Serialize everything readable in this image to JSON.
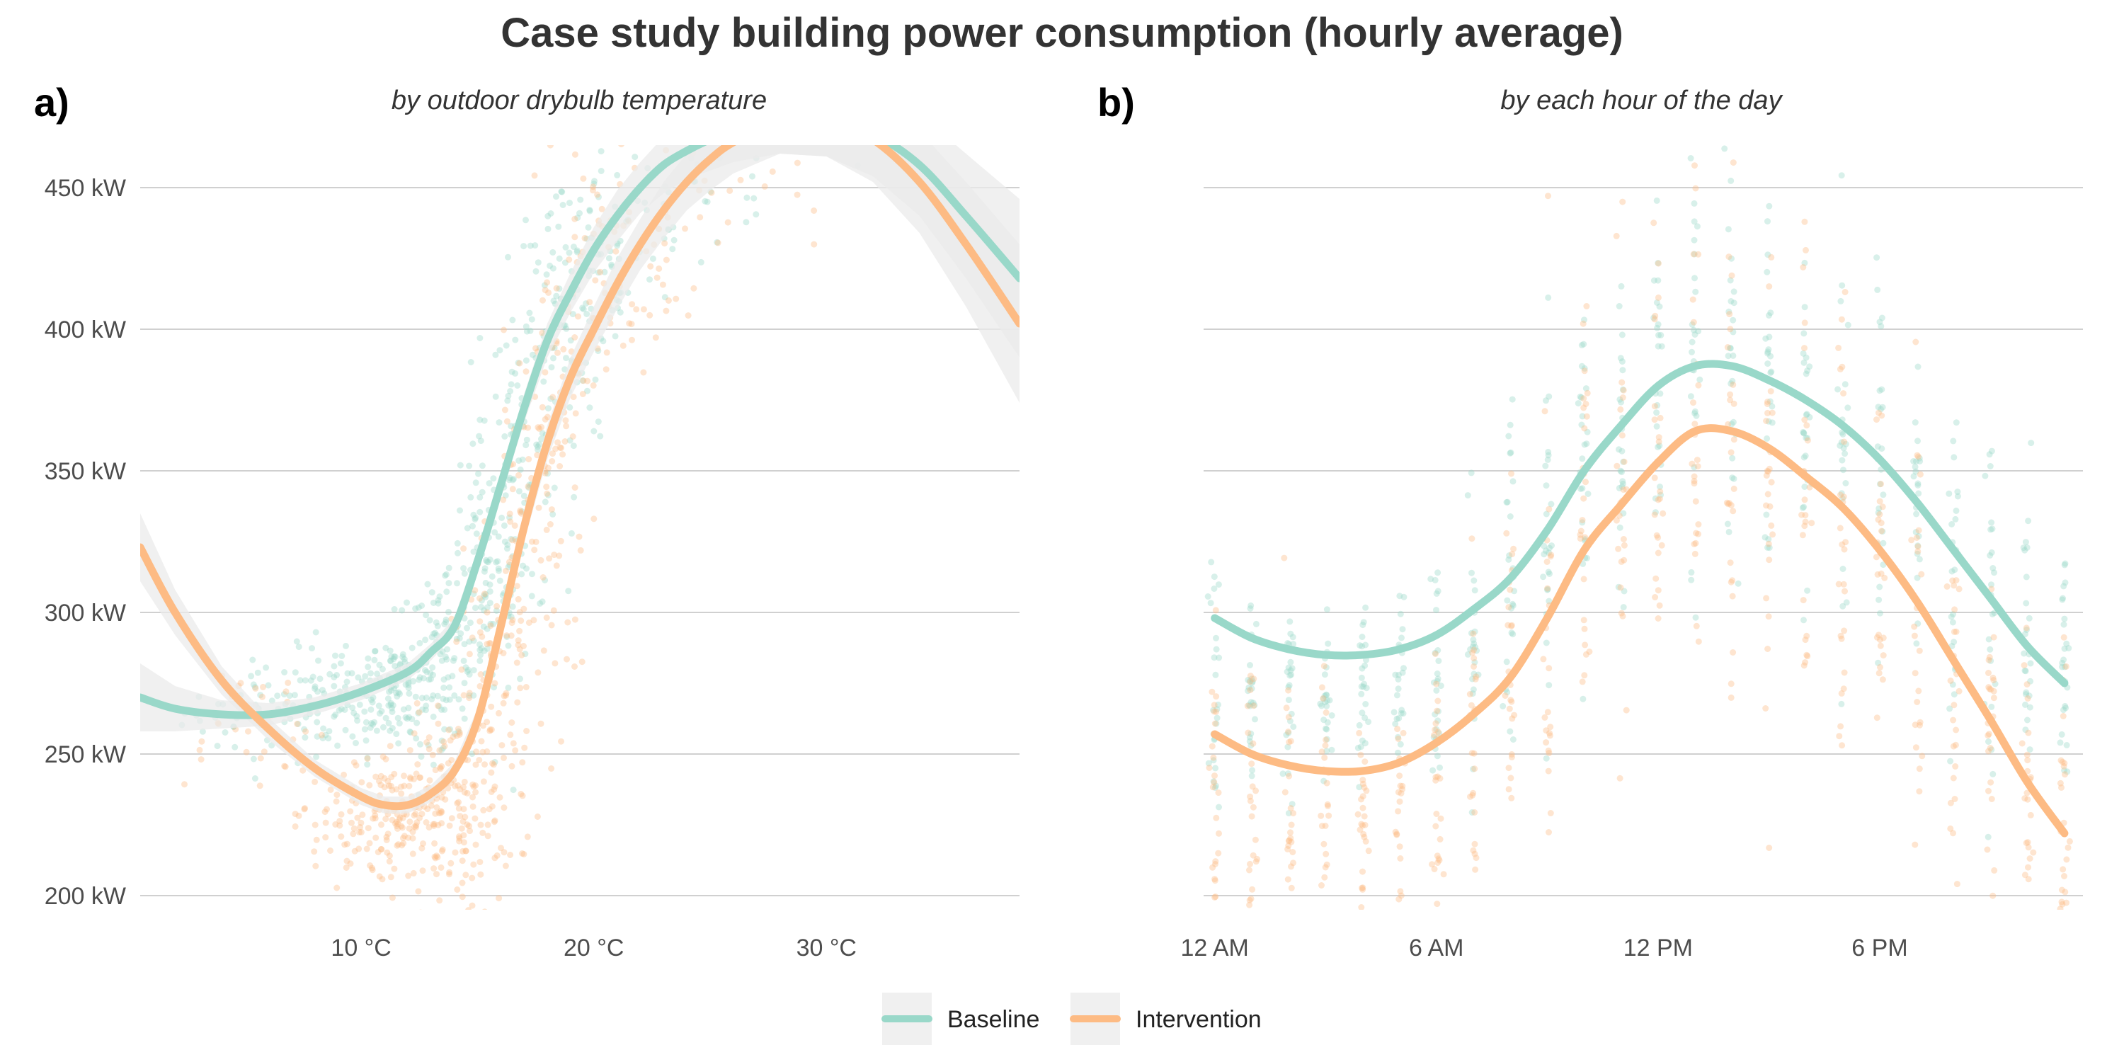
{
  "title": "Case study building power consumption (hourly average)",
  "colors": {
    "baseline": "#99d8c9",
    "intervention": "#fdbb84",
    "band": "#ebebeb",
    "grid": "#d0d0d0"
  },
  "legend": [
    {
      "key": "baseline",
      "label": "Baseline"
    },
    {
      "key": "intervention",
      "label": "Intervention"
    }
  ],
  "chart_data": [
    {
      "panel_label": "a)",
      "subtitle": "by outdoor drybulb temperature",
      "type": "scatter",
      "x_unit": "°C",
      "xlim": [
        0.5,
        38.3
      ],
      "ylim": [
        195,
        465
      ],
      "x_ticks": [
        {
          "value": 10,
          "label": "10 °C"
        },
        {
          "value": 20,
          "label": "20 °C"
        },
        {
          "value": 30,
          "label": "30 °C"
        }
      ],
      "y_ticks": [
        {
          "value": 200,
          "label": "200 kW"
        },
        {
          "value": 250,
          "label": "250 kW"
        },
        {
          "value": 300,
          "label": "300 kW"
        },
        {
          "value": 350,
          "label": "350 kW"
        },
        {
          "value": 400,
          "label": "400 kW"
        },
        {
          "value": 450,
          "label": "450 kW"
        }
      ],
      "series": [
        {
          "name": "Baseline",
          "key": "baseline",
          "trend": {
            "x": [
              0.5,
              2,
              4,
              6,
              8,
              10,
              12,
              13,
              14,
              15,
              16,
              17,
              18,
              19,
              20,
              21,
              22,
              23,
              24,
              25,
              26,
              28,
              30,
              32,
              34,
              36,
              38.3
            ],
            "y": [
              270,
              266,
              264,
              264,
              267,
              272,
              279,
              286,
              295,
              318,
              345,
              372,
              396,
              413,
              428,
              440,
              450,
              458,
              463,
              467,
              470,
              474,
              474,
              469,
              458,
              440,
              418
            ],
            "ci": [
              12,
              8,
              5,
              4,
              3,
              3,
              3,
              3,
              3,
              4,
              4,
              5,
              6,
              7,
              8,
              9,
              9,
              10,
              10,
              11,
              11,
              12,
              13,
              15,
              18,
              22,
              28
            ]
          },
          "scatter": [
            {
              "x": 6,
              "y": 265,
              "sx": 1.8,
              "sy": 9,
              "n": 50
            },
            {
              "x": 9,
              "y": 268,
              "sx": 1.5,
              "sy": 10,
              "n": 80
            },
            {
              "x": 11.5,
              "y": 274,
              "sx": 1.2,
              "sy": 12,
              "n": 100
            },
            {
              "x": 13.5,
              "y": 283,
              "sx": 1.0,
              "sy": 14,
              "n": 110
            },
            {
              "x": 15.5,
              "y": 315,
              "sx": 0.9,
              "sy": 25,
              "n": 110
            },
            {
              "x": 17,
              "y": 358,
              "sx": 0.8,
              "sy": 30,
              "n": 90
            },
            {
              "x": 18.5,
              "y": 395,
              "sx": 0.9,
              "sy": 30,
              "n": 80
            },
            {
              "x": 20.5,
              "y": 425,
              "sx": 1.2,
              "sy": 22,
              "n": 60
            },
            {
              "x": 23,
              "y": 445,
              "sx": 1.5,
              "sy": 15,
              "n": 30
            },
            {
              "x": 27,
              "y": 450,
              "sx": 2.0,
              "sy": 10,
              "n": 10
            }
          ]
        },
        {
          "name": "Intervention",
          "key": "intervention",
          "trend": {
            "x": [
              0.5,
              2,
              4,
              6,
              8,
              10,
              11,
              12,
              13,
              14,
              15,
              16,
              17,
              18,
              19,
              20,
              21,
              22,
              23,
              24,
              25,
              26,
              28,
              30,
              32,
              34,
              36,
              38.3
            ],
            "y": [
              323,
              300,
              276,
              259,
              245,
              235,
              232,
              232,
              236,
              244,
              262,
              295,
              330,
              360,
              383,
              400,
              416,
              430,
              442,
              452,
              460,
              466,
              474,
              474,
              467,
              452,
              430,
              402
            ],
            "ci": [
              12,
              8,
              5,
              4,
              3,
              3,
              3,
              3,
              3,
              3,
              4,
              5,
              5,
              6,
              7,
              8,
              9,
              9,
              10,
              10,
              11,
              11,
              12,
              13,
              15,
              18,
              22,
              28
            ]
          },
          "scatter": [
            {
              "x": 5,
              "y": 262,
              "sx": 1.8,
              "sy": 12,
              "n": 30
            },
            {
              "x": 9.5,
              "y": 225,
              "sx": 1.2,
              "sy": 10,
              "n": 80
            },
            {
              "x": 12,
              "y": 228,
              "sx": 1.1,
              "sy": 13,
              "n": 110
            },
            {
              "x": 14,
              "y": 232,
              "sx": 1.0,
              "sy": 16,
              "n": 110
            },
            {
              "x": 15.5,
              "y": 260,
              "sx": 0.8,
              "sy": 30,
              "n": 100
            },
            {
              "x": 17,
              "y": 310,
              "sx": 0.8,
              "sy": 40,
              "n": 90
            },
            {
              "x": 18.5,
              "y": 370,
              "sx": 0.9,
              "sy": 35,
              "n": 80
            },
            {
              "x": 20.5,
              "y": 415,
              "sx": 1.2,
              "sy": 25,
              "n": 60
            },
            {
              "x": 23,
              "y": 440,
              "sx": 1.5,
              "sy": 15,
              "n": 30
            },
            {
              "x": 28,
              "y": 445,
              "sx": 2.0,
              "sy": 10,
              "n": 8
            }
          ]
        }
      ]
    },
    {
      "panel_label": "b)",
      "subtitle": "by each hour of the day",
      "type": "scatter",
      "x_unit": "hour",
      "xlim": [
        -0.3,
        23.5
      ],
      "ylim": [
        195,
        465
      ],
      "x_ticks": [
        {
          "value": 0,
          "label": "12 AM"
        },
        {
          "value": 6,
          "label": "6 AM"
        },
        {
          "value": 12,
          "label": "12 PM"
        },
        {
          "value": 18,
          "label": "6 PM"
        }
      ],
      "y_ticks": [
        {
          "value": 200
        },
        {
          "value": 250
        },
        {
          "value": 300
        },
        {
          "value": 350
        },
        {
          "value": 400
        },
        {
          "value": 450
        }
      ],
      "series": [
        {
          "name": "Baseline",
          "key": "baseline",
          "trend": {
            "x": [
              0,
              1,
              2,
              3,
              4,
              5,
              6,
              7,
              8,
              9,
              10,
              11,
              12,
              13,
              14,
              15,
              16,
              17,
              18,
              19,
              20,
              21,
              22,
              23
            ],
            "y": [
              298,
              291,
              287,
              285,
              285,
              287,
              292,
              301,
              312,
              329,
              350,
              366,
              380,
              387,
              387,
              382,
              375,
              366,
              354,
              339,
              322,
              305,
              288,
              275
            ]
          },
          "scatter": {
            "hours": [
              0,
              1,
              2,
              3,
              4,
              5,
              6,
              7,
              8,
              9,
              10,
              11,
              12,
              13,
              14,
              15,
              16,
              17,
              18,
              19,
              20,
              21,
              22,
              23
            ],
            "means": [
              275,
              272,
              270,
              268,
              268,
              270,
              276,
              290,
              315,
              335,
              355,
              370,
              385,
              390,
              388,
              382,
              375,
              365,
              352,
              338,
              320,
              305,
              290,
              280
            ],
            "spread": [
              30,
              25,
              22,
              20,
              20,
              22,
              28,
              35,
              40,
              45,
              45,
              45,
              45,
              45,
              45,
              45,
              45,
              45,
              42,
              40,
              38,
              35,
              32,
              30
            ],
            "per_hour": 26
          }
        },
        {
          "name": "Intervention",
          "key": "intervention",
          "trend": {
            "x": [
              0,
              1,
              2,
              3,
              4,
              5,
              6,
              7,
              8,
              9,
              10,
              11,
              12,
              13,
              14,
              15,
              16,
              17,
              18,
              19,
              20,
              21,
              22,
              23
            ],
            "y": [
              257,
              250,
              246,
              244,
              244,
              247,
              254,
              264,
              277,
              298,
              322,
              338,
              353,
              364,
              364,
              358,
              348,
              337,
              322,
              304,
              283,
              262,
              240,
              222
            ]
          },
          "scatter": {
            "hours": [
              0,
              1,
              2,
              3,
              4,
              5,
              6,
              7,
              8,
              9,
              10,
              11,
              12,
              13,
              14,
              15,
              16,
              17,
              18,
              19,
              20,
              21,
              22,
              23
            ],
            "means": [
              235,
              230,
              228,
              226,
              226,
              228,
              238,
              255,
              275,
              298,
              322,
              340,
              355,
              362,
              360,
              352,
              343,
              332,
              315,
              297,
              275,
              255,
              235,
              225
            ],
            "spread": [
              40,
              35,
              32,
              30,
              30,
              32,
              38,
              42,
              48,
              52,
              55,
              55,
              55,
              55,
              55,
              55,
              55,
              55,
              52,
              50,
              48,
              45,
              42,
              40
            ],
            "per_hour": 26
          }
        }
      ]
    }
  ]
}
